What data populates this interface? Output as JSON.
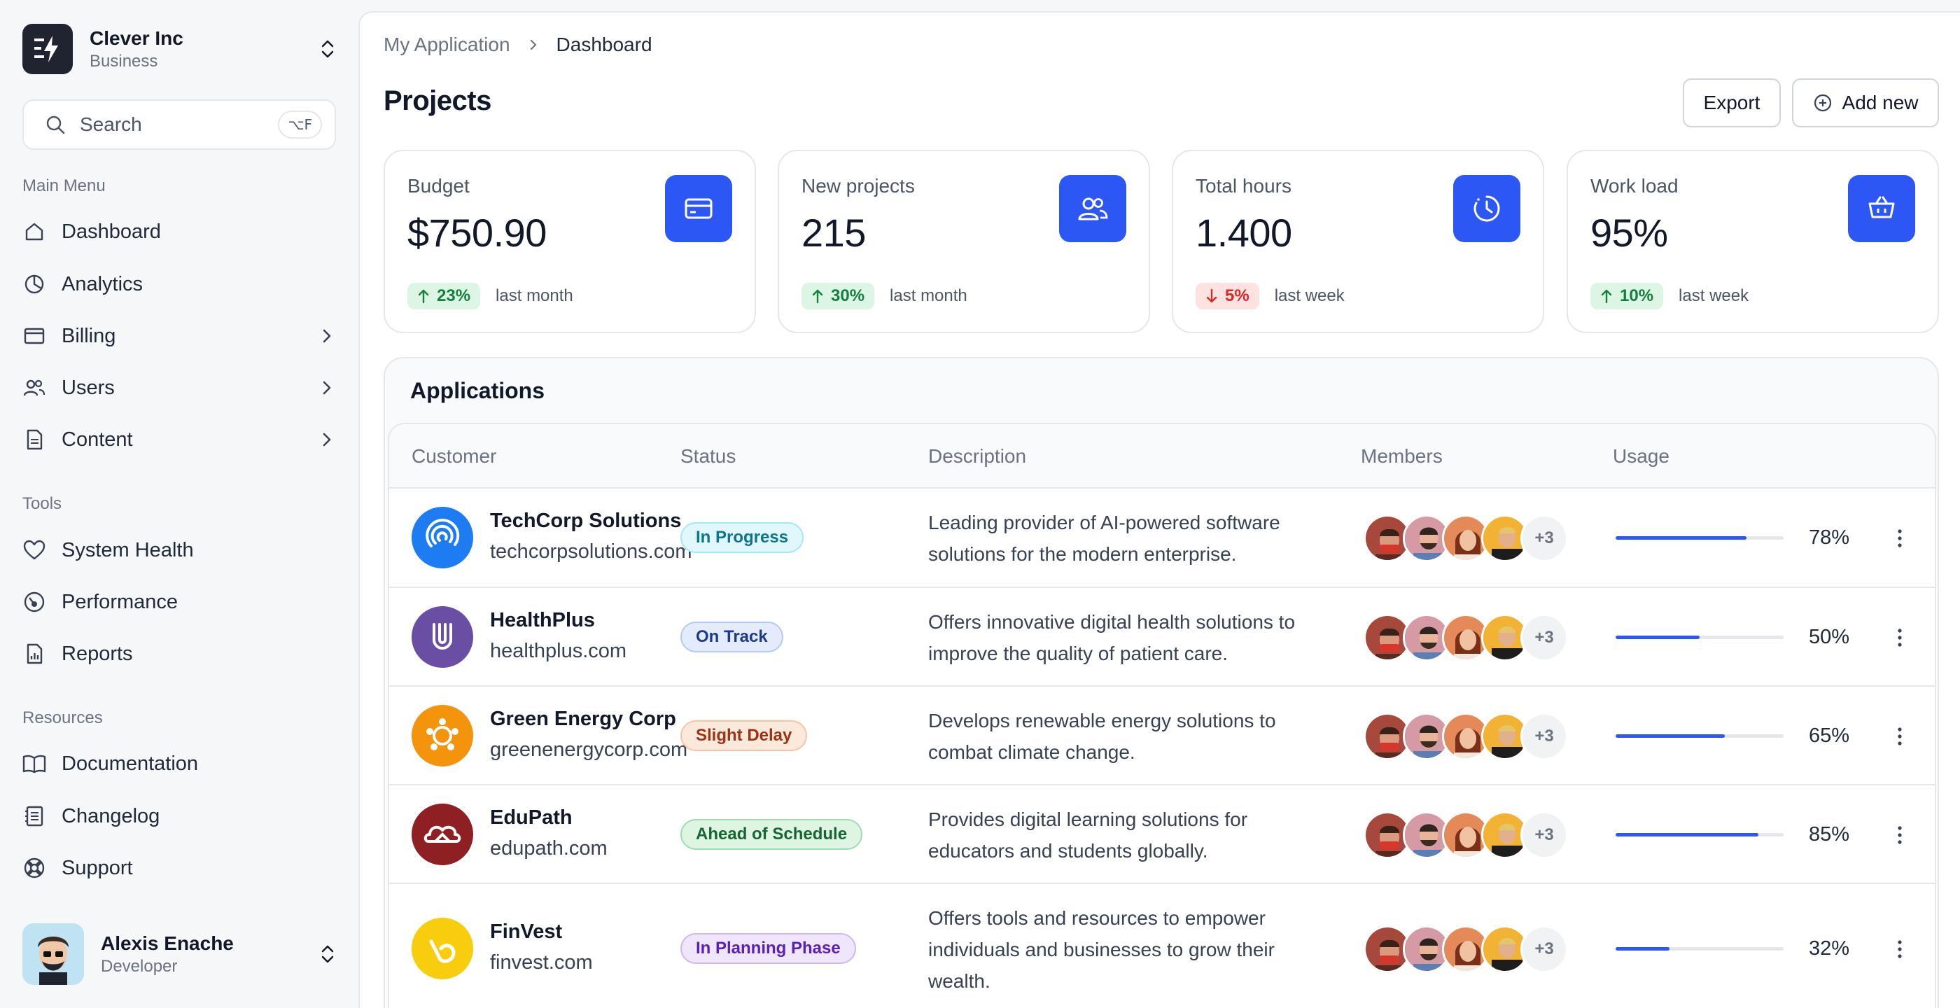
{
  "org": {
    "name": "Clever Inc",
    "plan": "Business"
  },
  "search": {
    "label": "Search",
    "shortcut": "⌥F"
  },
  "sidebar": {
    "main_menu_title": "Main Menu",
    "main_menu": [
      {
        "label": "Dashboard",
        "icon": "home-icon"
      },
      {
        "label": "Analytics",
        "icon": "pie-chart-icon"
      },
      {
        "label": "Billing",
        "icon": "credit-card-icon"
      },
      {
        "label": "Users",
        "icon": "users-icon"
      },
      {
        "label": "Content",
        "icon": "file-icon"
      }
    ],
    "tools_title": "Tools",
    "tools": [
      {
        "label": "System Health",
        "icon": "heart-icon"
      },
      {
        "label": "Performance",
        "icon": "gauge-icon"
      },
      {
        "label": "Reports",
        "icon": "report-icon"
      }
    ],
    "resources_title": "Resources",
    "resources": [
      {
        "label": "Documentation",
        "icon": "book-icon"
      },
      {
        "label": "Changelog",
        "icon": "list-icon"
      },
      {
        "label": "Support",
        "icon": "life-buoy-icon"
      }
    ]
  },
  "user": {
    "name": "Alexis Enache",
    "role": "Developer"
  },
  "breadcrumb": {
    "parent": "My Application",
    "current": "Dashboard"
  },
  "page": {
    "title": "Projects",
    "export_label": "Export",
    "add_label": "Add new"
  },
  "stats": [
    {
      "label": "Budget",
      "value": "$750.90",
      "change": "23%",
      "direction": "up",
      "period": "last month",
      "icon": "credit-card-icon"
    },
    {
      "label": "New projects",
      "value": "215",
      "change": "30%",
      "direction": "up",
      "period": "last month",
      "icon": "users-icon"
    },
    {
      "label": "Total hours",
      "value": "1.400",
      "change": "5%",
      "direction": "down",
      "period": "last week",
      "icon": "clock-icon"
    },
    {
      "label": "Work load",
      "value": "95%",
      "change": "10%",
      "direction": "up",
      "period": "last week",
      "icon": "cart-icon"
    }
  ],
  "applications": {
    "title": "Applications",
    "columns": [
      "Customer",
      "Status",
      "Description",
      "Members",
      "Usage"
    ],
    "rows": [
      {
        "name": "TechCorp Solutions",
        "url": "techcorpsolutions.com",
        "status": "In Progress",
        "status_color": "#0e7490",
        "status_bg": "#e0f7fb",
        "status_border": "#a5e7f2",
        "description": [
          "Leading provider of AI-powered software",
          "solutions for the modern enterprise."
        ],
        "members_more": "+3",
        "usage": 78,
        "usage_label": "78%",
        "logo_color": "#1d7cf2",
        "logo_icon": "spiral-icon"
      },
      {
        "name": "HealthPlus",
        "url": "healthplus.com",
        "status": "On Track",
        "status_color": "#1e3a8a",
        "status_bg": "#e3ebfc",
        "status_border": "#b6c8f4",
        "description": [
          "Offers innovative digital health solutions to",
          "improve the quality of patient care."
        ],
        "members_more": "+3",
        "usage": 50,
        "usage_label": "50%",
        "logo_color": "#6a4ea3",
        "logo_icon": "magnet-icon"
      },
      {
        "name": "Green Energy Corp",
        "url": "greenenergycorp.com",
        "status": "Slight Delay",
        "status_color": "#9a3412",
        "status_bg": "#fde9dc",
        "status_border": "#f7c4a5",
        "description": [
          "Develops renewable energy solutions to",
          "combat climate change."
        ],
        "members_more": "+3",
        "usage": 65,
        "usage_label": "65%",
        "logo_color": "#f4930c",
        "logo_icon": "atom-icon"
      },
      {
        "name": "EduPath",
        "url": "edupath.com",
        "status": "Ahead of Schedule",
        "status_color": "#166534",
        "status_bg": "#def5e4",
        "status_border": "#9fdcb0",
        "description": [
          "Provides digital learning solutions for",
          "educators and students globally."
        ],
        "members_more": "+3",
        "usage": 85,
        "usage_label": "85%",
        "logo_color": "#8e1f22",
        "logo_icon": "cloud-icon"
      },
      {
        "name": "FinVest",
        "url": "finvest.com",
        "status": "In Planning Phase",
        "status_color": "#5b21b6",
        "status_bg": "#efe6fc",
        "status_border": "#cfb6f4",
        "description": [
          "Offers tools and resources to empower",
          "individuals and businesses to grow their",
          "wealth."
        ],
        "members_more": "+3",
        "usage": 32,
        "usage_label": "32%",
        "logo_color": "#f8cd0d",
        "logo_icon": "swirl-icon"
      }
    ]
  },
  "colors": {
    "accent": "#2d57f5"
  }
}
